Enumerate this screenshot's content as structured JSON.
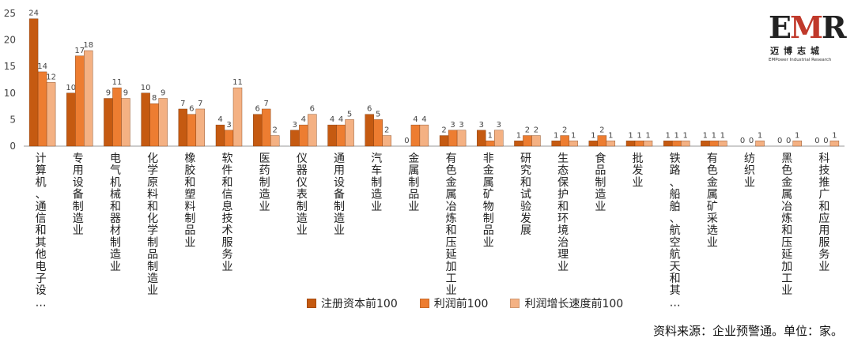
{
  "chart_data": {
    "type": "bar",
    "categories": [
      "计算机、通信和其他电子设…",
      "专用设备制造业",
      "电气机械和器材制造业",
      "化学原料和化学制品制造业",
      "橡胶和塑料制品业",
      "软件和信息技术服务业",
      "医药制造业",
      "仪器仪表制造业",
      "通用设备制造业",
      "汽车制造业",
      "金属制品业",
      "有色金属冶炼和压延加工业",
      "非金属矿物制品业",
      "研究和试验发展",
      "生态保护和环境治理业",
      "食品制造业",
      "批发业",
      "铁路、船舶、航空航天和其…",
      "有色金属矿采选业",
      "纺织业",
      "黑色金属冶炼和压延加工业",
      "科技推广和应用服务业"
    ],
    "series": [
      {
        "name": "注册资本前100",
        "color": "#C55A11",
        "values": [
          24,
          10,
          9,
          10,
          7,
          4,
          6,
          3,
          4,
          6,
          0,
          2,
          3,
          1,
          1,
          1,
          1,
          1,
          1,
          0,
          0,
          0
        ]
      },
      {
        "name": "利润前100",
        "color": "#ED7D31",
        "values": [
          14,
          17,
          11,
          8,
          6,
          3,
          7,
          4,
          4,
          5,
          4,
          3,
          1,
          2,
          2,
          2,
          1,
          1,
          1,
          0,
          0,
          0
        ]
      },
      {
        "name": "利润增长速度前100",
        "color": "#F4B183",
        "values": [
          12,
          18,
          9,
          9,
          7,
          11,
          2,
          6,
          5,
          2,
          4,
          3,
          3,
          2,
          1,
          1,
          1,
          1,
          1,
          1,
          1,
          1
        ]
      }
    ],
    "yticks": [
      0,
      5,
      10,
      15,
      20,
      25
    ],
    "ylim": [
      0,
      25
    ],
    "xlabel": "",
    "ylabel": "",
    "grid": false,
    "legend_position": "bottom"
  },
  "legend_items": [
    {
      "label": "注册资本前100",
      "color": "#C55A11"
    },
    {
      "label": "利润前100",
      "color": "#ED7D31"
    },
    {
      "label": "利润增长速度前100",
      "color": "#F4B183"
    }
  ],
  "source_text": "资料来源：企业预警通。单位：家。",
  "logo": {
    "mark_left": "E",
    "mark_mid": "M",
    "mark_right": "R",
    "cn": "迈博志城",
    "en": "EMPower Industrial Research"
  }
}
